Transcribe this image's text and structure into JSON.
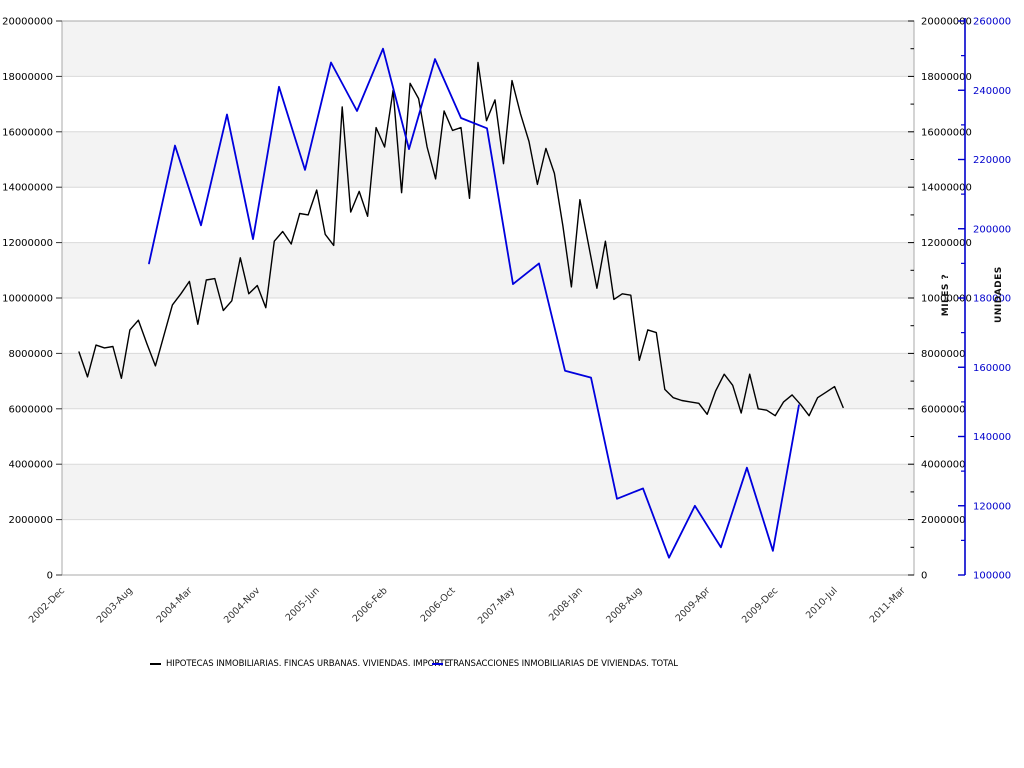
{
  "chart_data": {
    "type": "line",
    "title": "",
    "background": "#ffffff",
    "band_fill": "#f3f3f3",
    "grid_color": "#d9d9d9",
    "border_color": "#aaaaaa",
    "legend_position": "bottom",
    "left_axis": {
      "min": 0,
      "max": 20000000,
      "step": 2000000,
      "tick_labels": [
        "0",
        "2000000",
        "4000000",
        "6000000",
        "8000000",
        "10000000",
        "12000000",
        "14000000",
        "16000000",
        "18000000",
        "20000000"
      ]
    },
    "right_axis_miles": {
      "title": "MILES ?",
      "min": 0,
      "max": 20000000,
      "step": 2000000,
      "minor_step": 1000000,
      "tick_labels": [
        "0",
        "2000000",
        "4000000",
        "6000000",
        "8000000",
        "10000000",
        "12000000",
        "14000000",
        "16000000",
        "18000000",
        "20000000"
      ],
      "color": "#000000"
    },
    "right_axis_unidades": {
      "title": "UNIDADES",
      "min": 100000,
      "max": 260000,
      "step": 20000,
      "minor_step": 10000,
      "tick_labels": [
        "100000",
        "120000",
        "140000",
        "160000",
        "180000",
        "200000",
        "220000",
        "240000",
        "260000"
      ],
      "color": "#0000cc"
    },
    "x_axis": {
      "tick_labels": [
        {
          "label": "2002-Dec",
          "month": 0
        },
        {
          "label": "2003-Aug",
          "month": 8
        },
        {
          "label": "2004-Mar",
          "month": 15
        },
        {
          "label": "2004-Nov",
          "month": 23
        },
        {
          "label": "2005-Jun",
          "month": 30
        },
        {
          "label": "2006-Feb",
          "month": 38
        },
        {
          "label": "2006-Oct",
          "month": 46
        },
        {
          "label": "2007-May",
          "month": 53
        },
        {
          "label": "2008-Jan",
          "month": 61
        },
        {
          "label": "2008-Aug",
          "month": 68
        },
        {
          "label": "2009-Apr",
          "month": 76
        },
        {
          "label": "2009-Dec",
          "month": 84
        },
        {
          "label": "2010-Jul",
          "month": 91
        },
        {
          "label": "2011-Mar",
          "month": 99
        }
      ]
    },
    "series": [
      {
        "name": "HIPOTECAS INMOBILIARIAS. FINCAS URBANAS. VIVIENDAS. IMPORTE",
        "color": "#000000",
        "width": 1.4,
        "axis": "left",
        "frequency": "monthly",
        "start_label": "2003-Feb",
        "start_month": 2,
        "month_step": 1,
        "values": [
          8050000,
          7150000,
          8300000,
          8200000,
          8250000,
          7100000,
          8850000,
          9200000,
          8350000,
          7550000,
          8650000,
          9750000,
          10150000,
          10600000,
          9050000,
          10650000,
          10700000,
          9550000,
          9900000,
          11450000,
          10150000,
          10450000,
          9650000,
          12050000,
          12400000,
          11950000,
          13050000,
          13000000,
          13900000,
          12300000,
          11900000,
          16900000,
          13100000,
          13850000,
          12950000,
          16150000,
          15450000,
          17500000,
          13800000,
          17750000,
          17200000,
          15450000,
          14300000,
          16750000,
          16050000,
          16150000,
          13600000,
          18500000,
          16400000,
          17150000,
          14850000,
          17850000,
          16650000,
          15650000,
          14100000,
          15400000,
          14500000,
          12600000,
          10400000,
          13550000,
          11950000,
          10350000,
          12050000,
          9950000,
          10150000,
          10100000,
          7750000,
          8850000,
          8750000,
          6700000,
          6400000,
          6300000,
          6250000,
          6200000,
          5800000,
          6650000,
          7250000,
          6850000,
          5850000,
          7250000,
          6000000,
          5950000,
          5750000,
          6250000,
          6500000,
          6150000,
          5750000,
          6400000,
          6600000,
          6800000,
          6050000
        ]
      },
      {
        "name": "TRANSACCIONES INMOBILIARIAS DE VIVIENDAS. TOTAL",
        "color": "#0000dd",
        "width": 1.8,
        "axis": "unidades",
        "frequency": "quarterly",
        "start_label": "2003-Q4",
        "start_month": 10.25,
        "month_step": 3.062,
        "quarters": [
          "2003-Q4",
          "2004-Q1",
          "2004-Q2",
          "2004-Q3",
          "2004-Q4",
          "2005-Q1",
          "2005-Q2",
          "2005-Q3",
          "2005-Q4",
          "2006-Q1",
          "2006-Q2",
          "2006-Q3",
          "2006-Q4",
          "2007-Q1",
          "2007-Q2",
          "2007-Q3",
          "2007-Q4",
          "2008-Q1",
          "2008-Q2",
          "2008-Q3",
          "2008-Q4",
          "2009-Q1",
          "2009-Q2",
          "2009-Q3",
          "2009-Q4",
          "2010-Q1"
        ],
        "values": [
          190000,
          224000,
          201000,
          233000,
          197000,
          241000,
          217000,
          248000,
          234000,
          252000,
          223000,
          249000,
          232000,
          229000,
          184000,
          190000,
          159000,
          157000,
          122000,
          125000,
          105000,
          120000,
          108000,
          131000,
          107000,
          149000
        ]
      }
    ]
  }
}
